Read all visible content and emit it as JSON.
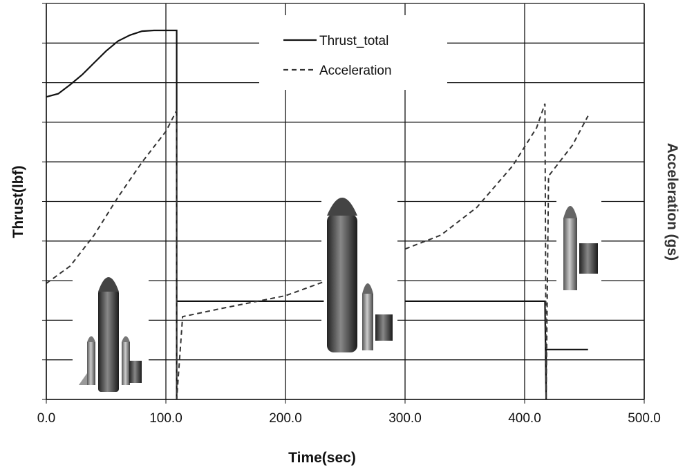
{
  "chart_data": {
    "type": "line",
    "xlabel": "Time(sec)",
    "ylabel": "Thrust(lbf)",
    "y2label": "Acceleration (gs)",
    "xlim": [
      0,
      500
    ],
    "xticks": [
      {
        "value": 0,
        "label": "0.0"
      },
      {
        "value": 100,
        "label": "100.0"
      },
      {
        "value": 200,
        "label": "200.0"
      },
      {
        "value": 300,
        "label": "300.0"
      },
      {
        "value": 400,
        "label": "400.0"
      },
      {
        "value": 500,
        "label": "500.0"
      }
    ],
    "ylim": [
      0,
      10
    ],
    "yticks": [
      0,
      1,
      2,
      3,
      4,
      5,
      6,
      7,
      8,
      9,
      10
    ],
    "ytick_labels": false,
    "y2lim": [
      0,
      10
    ],
    "grid": true,
    "legend": "top-center",
    "series": [
      {
        "name": "Thrust_total",
        "color": "#111111",
        "dash": false,
        "x": [
          0,
          10,
          20,
          30,
          40,
          50,
          60,
          70,
          80,
          90,
          100,
          109,
          109,
          109,
          232,
          null,
          300,
          417,
          418,
          418,
          453
        ],
        "values": [
          7.64,
          7.72,
          7.95,
          8.2,
          8.5,
          8.8,
          9.05,
          9.2,
          9.3,
          9.32,
          9.32,
          9.32,
          0,
          2.48,
          2.48,
          null,
          2.48,
          2.48,
          0,
          1.26,
          1.26
        ]
      },
      {
        "name": "Acceleration",
        "color": "#333333",
        "dash": true,
        "axis": "y2",
        "x": [
          0,
          20,
          40,
          60,
          80,
          100,
          109,
          109,
          114,
          150,
          200,
          232,
          null,
          300,
          330,
          360,
          390,
          410,
          417,
          418,
          420,
          440,
          453
        ],
        "values": [
          2.93,
          3.37,
          4.15,
          5.11,
          5.99,
          6.77,
          7.3,
          0,
          2.09,
          2.32,
          2.62,
          2.97,
          null,
          3.8,
          4.15,
          4.85,
          5.9,
          6.86,
          7.47,
          0,
          5.64,
          6.42,
          7.16
        ]
      }
    ]
  }
}
